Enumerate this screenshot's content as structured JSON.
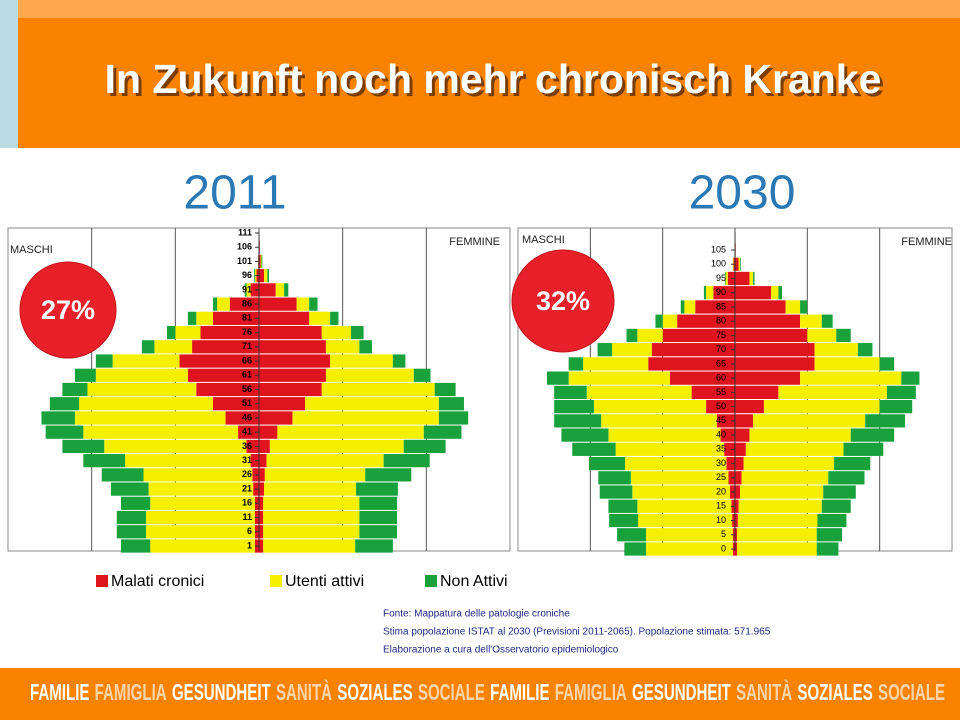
{
  "header": {
    "title": "In Zukunft noch mehr chronisch Kranke"
  },
  "legend": [
    {
      "name": "Malati cronici",
      "color": "#e0141e"
    },
    {
      "name": "Utenti attivi",
      "color": "#f5f000"
    },
    {
      "name": "Non Attivi",
      "color": "#19a23c"
    }
  ],
  "charts": [
    {
      "type": "bar",
      "year": "2011",
      "left_label": "MASCHI",
      "right_label": "FEMMINE",
      "share": "27%",
      "categories": [
        "1",
        "6",
        "11",
        "16",
        "21",
        "26",
        "31",
        "36",
        "41",
        "46",
        "51",
        "56",
        "61",
        "66",
        "71",
        "76",
        "81",
        "86",
        "91",
        "96",
        "101",
        "106",
        "111"
      ],
      "xlim": [
        -3,
        3
      ],
      "xticks": [
        -2,
        -1,
        0,
        1,
        2
      ],
      "grid": true,
      "series": [
        {
          "male": [
            0.05,
            0.05,
            0.05,
            0.05,
            0.07,
            0.08,
            0.1,
            0.15,
            0.25,
            0.4,
            0.55,
            0.75,
            0.85,
            0.95,
            0.8,
            0.7,
            0.55,
            0.35,
            0.1,
            0.03,
            0.01,
            0,
            0
          ],
          "female": [
            0.05,
            0.05,
            0.05,
            0.05,
            0.06,
            0.07,
            0.09,
            0.13,
            0.22,
            0.4,
            0.55,
            0.75,
            0.8,
            0.85,
            0.8,
            0.75,
            0.6,
            0.45,
            0.2,
            0.06,
            0.02,
            0.01,
            0
          ]
        },
        {
          "male": [
            1.25,
            1.3,
            1.3,
            1.25,
            1.25,
            1.3,
            1.5,
            1.7,
            1.85,
            1.8,
            1.6,
            1.3,
            1.1,
            0.8,
            0.45,
            0.3,
            0.2,
            0.15,
            0.05,
            0.02,
            0,
            0,
            0
          ],
          "female": [
            1.1,
            1.15,
            1.15,
            1.15,
            1.1,
            1.2,
            1.4,
            1.6,
            1.75,
            1.75,
            1.6,
            1.35,
            1.05,
            0.75,
            0.4,
            0.35,
            0.25,
            0.15,
            0.1,
            0.04,
            0.01,
            0,
            0
          ]
        },
        {
          "male": [
            0.35,
            0.35,
            0.35,
            0.35,
            0.45,
            0.5,
            0.5,
            0.5,
            0.45,
            0.4,
            0.35,
            0.3,
            0.25,
            0.2,
            0.15,
            0.1,
            0.1,
            0.05,
            0.02,
            0.01,
            0,
            0,
            0
          ],
          "female": [
            0.45,
            0.45,
            0.45,
            0.45,
            0.5,
            0.55,
            0.55,
            0.5,
            0.45,
            0.35,
            0.3,
            0.25,
            0.2,
            0.15,
            0.15,
            0.15,
            0.1,
            0.1,
            0.05,
            0.02,
            0.01,
            0,
            0
          ]
        }
      ]
    },
    {
      "type": "bar",
      "year": "2030",
      "left_label": "MASCHI",
      "right_label": "FEMMINE",
      "share": "32%",
      "categories": [
        "0",
        "5",
        "10",
        "15",
        "20",
        "25",
        "30",
        "35",
        "40",
        "45",
        "50",
        "55",
        "60",
        "65",
        "70",
        "75",
        "80",
        "85",
        "90",
        "95",
        "100",
        "105"
      ],
      "xlim": [
        -3,
        3
      ],
      "xticks": [
        -2,
        -1,
        0,
        1,
        2
      ],
      "grid": true,
      "series": [
        {
          "male": [
            0.03,
            0.03,
            0.04,
            0.05,
            0.07,
            0.09,
            0.12,
            0.15,
            0.2,
            0.25,
            0.4,
            0.6,
            0.9,
            1.2,
            1.15,
            1.0,
            0.8,
            0.55,
            0.3,
            0.1,
            0.02,
            0
          ],
          "female": [
            0.03,
            0.03,
            0.04,
            0.05,
            0.07,
            0.09,
            0.12,
            0.15,
            0.2,
            0.25,
            0.4,
            0.6,
            0.9,
            1.1,
            1.1,
            1.0,
            0.9,
            0.7,
            0.5,
            0.2,
            0.05,
            0.01
          ]
        },
        {
          "male": [
            1.2,
            1.2,
            1.3,
            1.3,
            1.35,
            1.35,
            1.4,
            1.5,
            1.55,
            1.6,
            1.55,
            1.45,
            1.4,
            0.9,
            0.55,
            0.35,
            0.2,
            0.15,
            0.1,
            0.03,
            0.01,
            0
          ],
          "female": [
            1.1,
            1.1,
            1.1,
            1.15,
            1.15,
            1.2,
            1.25,
            1.35,
            1.4,
            1.55,
            1.6,
            1.5,
            1.4,
            0.9,
            0.6,
            0.4,
            0.3,
            0.2,
            0.1,
            0.05,
            0.02,
            0
          ]
        },
        {
          "male": [
            0.3,
            0.4,
            0.4,
            0.4,
            0.45,
            0.45,
            0.5,
            0.6,
            0.65,
            0.65,
            0.55,
            0.45,
            0.3,
            0.2,
            0.2,
            0.15,
            0.1,
            0.05,
            0.03,
            0.01,
            0,
            0
          ],
          "female": [
            0.3,
            0.35,
            0.4,
            0.4,
            0.45,
            0.5,
            0.5,
            0.55,
            0.6,
            0.55,
            0.45,
            0.4,
            0.25,
            0.2,
            0.2,
            0.2,
            0.15,
            0.1,
            0.05,
            0.02,
            0.01,
            0
          ]
        }
      ]
    }
  ],
  "source": [
    "Fonte: Mappatura delle patologie croniche",
    "Stima popolazione ISTAT al 2030 (Previsioni 2011-2065). Popolazione stimata: 571.965",
    "Elaborazione a cura dell'Osservatorio epidemiologico"
  ],
  "footer": [
    "FAMILIE",
    "FAMIGLIA",
    "GESUNDHEIT",
    "SANITÀ",
    "SOZIALES",
    "SOCIALE",
    "FAMILIE",
    "FAMIGLIA",
    "GESUNDHEIT",
    "SANITÀ",
    "SOZIALES",
    "SOCIALE"
  ]
}
